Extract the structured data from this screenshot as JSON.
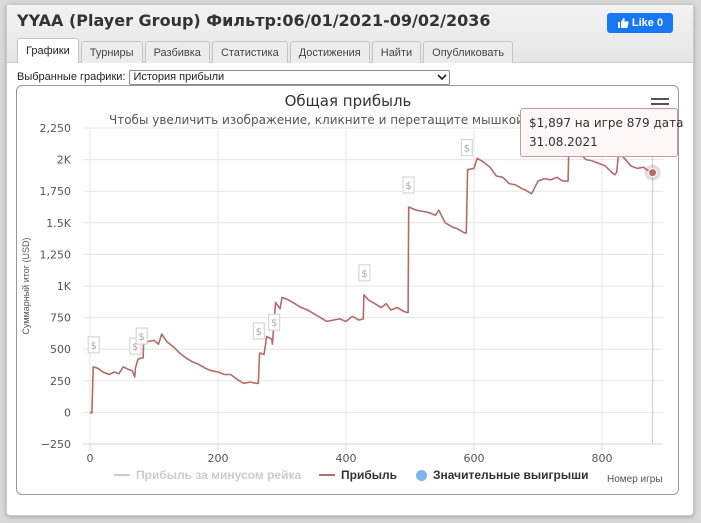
{
  "window": {
    "title": "YYAA (Player Group) Фильтр:06/01/2021-09/02/2036",
    "like_label": "Like 0"
  },
  "tabs": [
    {
      "label": "Графики",
      "active": true
    },
    {
      "label": "Турниры",
      "active": false
    },
    {
      "label": "Разбивка",
      "active": false
    },
    {
      "label": "Статистика",
      "active": false
    },
    {
      "label": "Достижения",
      "active": false
    },
    {
      "label": "Найти",
      "active": false
    },
    {
      "label": "Опубликовать",
      "active": false
    }
  ],
  "selector": {
    "label": "Выбранные графики:",
    "value": "История прибыли"
  },
  "tooltip": {
    "line1": "$1,897 на игре 879 дата",
    "line2": "31.08.2021"
  },
  "chart_data": {
    "type": "line",
    "title": "Общая прибыль",
    "subtitle": "Чтобы увеличить изображение, кликните и перетащите мышкой внут",
    "xlabel": "Номер игры",
    "ylabel": "Суммарный итог (USD)",
    "xlim": [
      0,
      880
    ],
    "ylim": [
      -250,
      2250
    ],
    "x_ticks": [
      0,
      200,
      400,
      600,
      800
    ],
    "x_tick_labels": [
      "0",
      "200",
      "400",
      "600",
      "800"
    ],
    "y_ticks": [
      -250,
      0,
      250,
      500,
      750,
      1000,
      1250,
      1500,
      1750,
      2000,
      2250
    ],
    "y_tick_labels": [
      "−250",
      "0",
      "250",
      "500",
      "750",
      "1K",
      "1,250",
      "1.5K",
      "1,750",
      "2K",
      "2,250"
    ],
    "grid": true,
    "legend_placement": "bottom",
    "colors": {
      "profit": "#b56b6b",
      "rake": "#cccccc",
      "wins": "#7cb5ec"
    },
    "series": [
      {
        "name": "Прибыль за минусом рейка",
        "visible": false,
        "points": []
      },
      {
        "name": "Прибыль",
        "visible": true,
        "points": [
          [
            0,
            0
          ],
          [
            3,
            -5
          ],
          [
            5,
            360
          ],
          [
            12,
            350
          ],
          [
            20,
            320
          ],
          [
            30,
            300
          ],
          [
            38,
            320
          ],
          [
            45,
            305
          ],
          [
            52,
            360
          ],
          [
            60,
            340
          ],
          [
            66,
            330
          ],
          [
            70,
            280
          ],
          [
            71,
            350
          ],
          [
            75,
            420
          ],
          [
            80,
            430
          ],
          [
            83,
            430
          ],
          [
            84,
            590
          ],
          [
            90,
            560
          ],
          [
            100,
            570
          ],
          [
            107,
            540
          ],
          [
            112,
            620
          ],
          [
            120,
            560
          ],
          [
            130,
            520
          ],
          [
            140,
            470
          ],
          [
            150,
            430
          ],
          [
            160,
            400
          ],
          [
            170,
            380
          ],
          [
            180,
            350
          ],
          [
            190,
            330
          ],
          [
            200,
            320
          ],
          [
            210,
            300
          ],
          [
            220,
            300
          ],
          [
            230,
            260
          ],
          [
            240,
            230
          ],
          [
            250,
            240
          ],
          [
            260,
            230
          ],
          [
            263,
            230
          ],
          [
            265,
            470
          ],
          [
            272,
            460
          ],
          [
            276,
            600
          ],
          [
            284,
            580
          ],
          [
            285,
            540
          ],
          [
            290,
            870
          ],
          [
            297,
            820
          ],
          [
            300,
            910
          ],
          [
            310,
            890
          ],
          [
            320,
            860
          ],
          [
            330,
            830
          ],
          [
            340,
            810
          ],
          [
            350,
            780
          ],
          [
            360,
            750
          ],
          [
            370,
            720
          ],
          [
            380,
            730
          ],
          [
            390,
            740
          ],
          [
            400,
            720
          ],
          [
            410,
            760
          ],
          [
            420,
            730
          ],
          [
            427,
            740
          ],
          [
            428,
            930
          ],
          [
            435,
            890
          ],
          [
            445,
            860
          ],
          [
            455,
            830
          ],
          [
            463,
            860
          ],
          [
            470,
            810
          ],
          [
            480,
            830
          ],
          [
            490,
            800
          ],
          [
            495,
            790
          ],
          [
            497,
            790
          ],
          [
            498,
            1625
          ],
          [
            510,
            1600
          ],
          [
            520,
            1590
          ],
          [
            530,
            1580
          ],
          [
            540,
            1560
          ],
          [
            545,
            1600
          ],
          [
            555,
            1500
          ],
          [
            565,
            1470
          ],
          [
            575,
            1450
          ],
          [
            585,
            1420
          ],
          [
            588,
            1420
          ],
          [
            590,
            1920
          ],
          [
            600,
            1930
          ],
          [
            605,
            2010
          ],
          [
            615,
            1980
          ],
          [
            625,
            1940
          ],
          [
            635,
            1870
          ],
          [
            645,
            1860
          ],
          [
            655,
            1810
          ],
          [
            665,
            1800
          ],
          [
            675,
            1770
          ],
          [
            680,
            1760
          ],
          [
            690,
            1730
          ],
          [
            700,
            1830
          ],
          [
            710,
            1850
          ],
          [
            720,
            1840
          ],
          [
            730,
            1860
          ],
          [
            735,
            1840
          ],
          [
            740,
            1830
          ],
          [
            745,
            1830
          ],
          [
            747,
            1830
          ],
          [
            748,
            2050
          ],
          [
            755,
            2080
          ],
          [
            765,
            2050
          ],
          [
            775,
            2000
          ],
          [
            785,
            1990
          ],
          [
            795,
            1970
          ],
          [
            805,
            1950
          ],
          [
            815,
            1900
          ],
          [
            820,
            1880
          ],
          [
            823,
            1900
          ],
          [
            826,
            2050
          ],
          [
            835,
            2010
          ],
          [
            845,
            1950
          ],
          [
            855,
            1930
          ],
          [
            865,
            1940
          ],
          [
            870,
            1920
          ],
          [
            879,
            1897
          ]
        ]
      },
      {
        "name": "Значительные выигрыши",
        "visible": true,
        "marker": "$",
        "points": [
          [
            5,
            360
          ],
          [
            70,
            350
          ],
          [
            80,
            430
          ],
          [
            263,
            470
          ],
          [
            287,
            540
          ],
          [
            428,
            930
          ],
          [
            497,
            1625
          ],
          [
            588,
            1920
          ]
        ]
      }
    ]
  }
}
